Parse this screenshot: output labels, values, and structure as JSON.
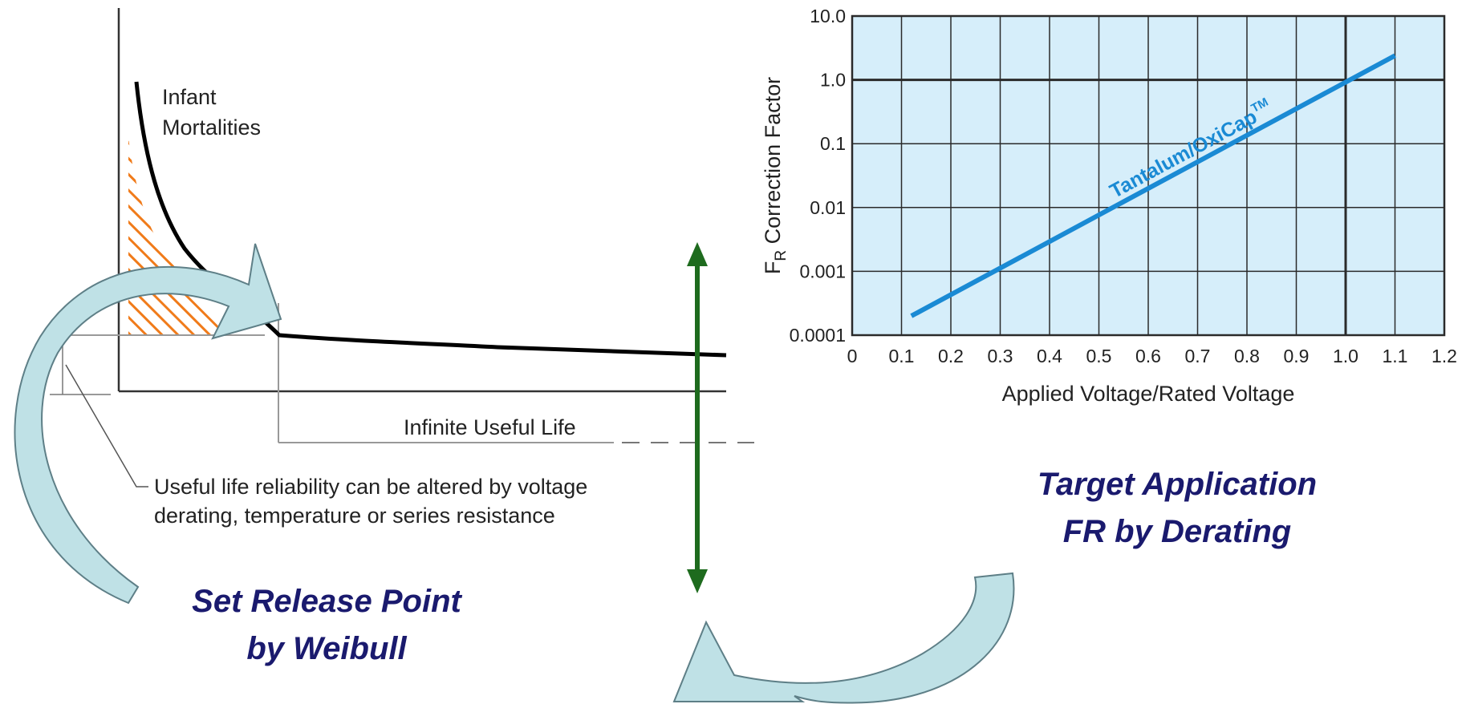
{
  "colors": {
    "plot_background": "#d6eefa",
    "grid": "#2a2a2a",
    "series_line": "#1a8ad4",
    "hatch": "#f07b1a",
    "arrow_fill": "#bfe1e6",
    "arrow_stroke": "#5e7f87",
    "vertical_arrow": "#1e6b1e",
    "caption_text": "#1a1a6e"
  },
  "bathtub": {
    "infant_label_line1": "Infant",
    "infant_label_line2": "Mortalities",
    "useful_life_label": "Infinite Useful Life",
    "note_line1": "Useful life reliability can be altered by voltage",
    "note_line2": "derating, temperature or series resistance"
  },
  "captions": {
    "left_line1": "Set Release Point",
    "left_line2": "by Weibull",
    "right_line1": "Target Application",
    "right_line2": "FR by Derating"
  },
  "chart_data": {
    "type": "line",
    "title": "",
    "xlabel": "Applied Voltage/Rated Voltage",
    "ylabel_main": "F",
    "ylabel_sub": "R",
    "ylabel_rest": " Correction Factor",
    "y_scale": "log",
    "xlim": [
      0,
      1.2
    ],
    "ylim": [
      0.0001,
      10
    ],
    "x_ticks": [
      "0",
      "0.1",
      "0.2",
      "0.3",
      "0.4",
      "0.5",
      "0.6",
      "0.7",
      "0.8",
      "0.9",
      "1.0",
      "1.1",
      "1.2"
    ],
    "y_ticks": [
      "0.0001",
      "0.001",
      "0.01",
      "0.1",
      "1.0",
      "10.0"
    ],
    "grid": true,
    "series": [
      {
        "name": "Tantalum/OxiCap",
        "name_superscript": "TM",
        "x": [
          0.12,
          1.1
        ],
        "y": [
          0.0002,
          2.4
        ]
      }
    ]
  }
}
